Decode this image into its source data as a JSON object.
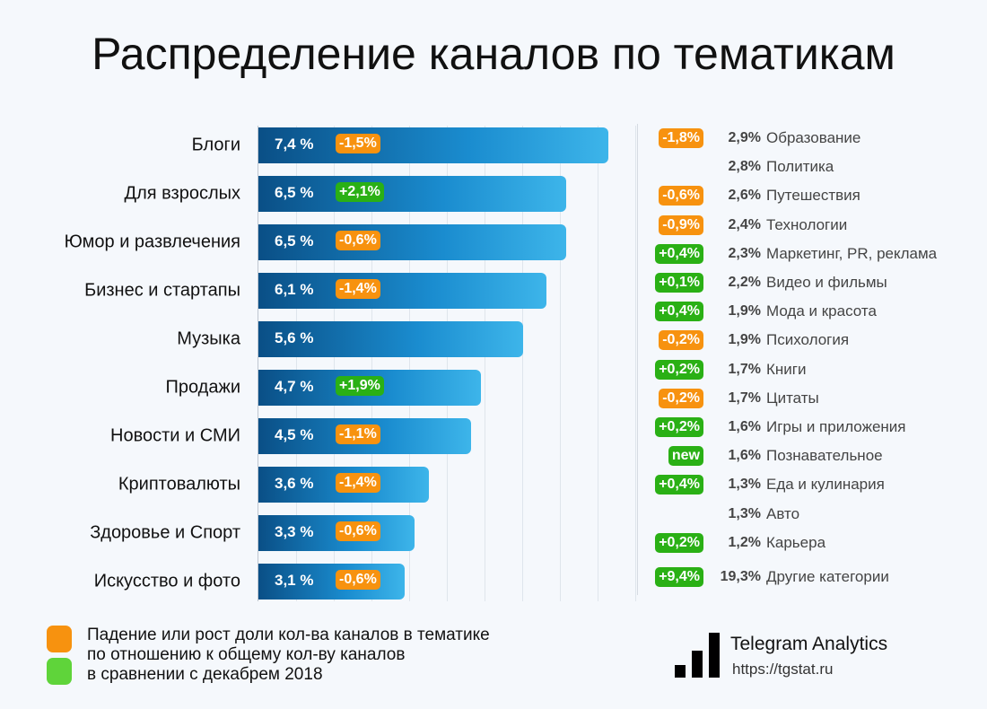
{
  "chart_data": {
    "type": "bar",
    "orientation": "horizontal",
    "title": "Распределение каналов по тематикам",
    "categories": [
      "Блоги",
      "Для взрослых",
      "Юмор и развлечения",
      "Бизнес и стартапы",
      "Музыка",
      "Продажи",
      "Новости и СМИ",
      "Криптовалюты",
      "Здоровье и Спорт",
      "Искусство и фото"
    ],
    "values": [
      7.4,
      6.5,
      6.5,
      6.1,
      5.6,
      4.7,
      4.5,
      3.6,
      3.3,
      3.1
    ],
    "value_labels": [
      "7,4 %",
      "6,5 %",
      "6,5 %",
      "6,1 %",
      "5,6 %",
      "4,7 %",
      "4,5 %",
      "3,6 %",
      "3,3 %",
      "3,1 %"
    ],
    "changes": [
      "-1,5%",
      "+2,1%",
      "-0,6%",
      "-1,4%",
      "",
      "+1,9%",
      "-1,1%",
      "-1,4%",
      "-0,6%",
      "-0,6%"
    ],
    "grid": true,
    "colors": {
      "bar_start": "#0a4f86",
      "bar_end": "#3db5ea",
      "decrease": "#f7920f",
      "increase": "#2ab015"
    },
    "other_categories": [
      {
        "change": "-1,8%",
        "value": "2,9%",
        "name": "Образование"
      },
      {
        "change": "",
        "value": "2,8%",
        "name": "Политика"
      },
      {
        "change": "-0,6%",
        "value": "2,6%",
        "name": "Путешествия"
      },
      {
        "change": "-0,9%",
        "value": "2,4%",
        "name": "Технологии"
      },
      {
        "change": "+0,4%",
        "value": "2,3%",
        "name": "Маркетинг, PR, реклама"
      },
      {
        "change": "+0,1%",
        "value": "2,2%",
        "name": "Видео и фильмы"
      },
      {
        "change": "+0,4%",
        "value": "1,9%",
        "name": "Мода и красота"
      },
      {
        "change": "-0,2%",
        "value": "1,9%",
        "name": "Психология"
      },
      {
        "change": "+0,2%",
        "value": "1,7%",
        "name": "Книги"
      },
      {
        "change": "-0,2%",
        "value": "1,7%",
        "name": "Цитаты"
      },
      {
        "change": "+0,2%",
        "value": "1,6%",
        "name": "Игры и приложения"
      },
      {
        "change": "new",
        "value": "1,6%",
        "name": "Познавательное"
      },
      {
        "change": "+0,4%",
        "value": "1,3%",
        "name": "Еда и кулинария"
      },
      {
        "change": "",
        "value": "1,3%",
        "name": "Авто"
      },
      {
        "change": "+0,2%",
        "value": "1,2%",
        "name": "Карьера"
      },
      {
        "change": "+9,4%",
        "value": "19,3%",
        "name": "Другие категории"
      }
    ],
    "legend": {
      "text": "Падение или рост доли кол-ва каналов в тематике\nпо отношению к общему кол-ву каналов\nв сравнении с декабрем 2018",
      "position": "bottom-left"
    }
  },
  "brand": {
    "name": "Telegram Analytics",
    "url": "https://tgstat.ru"
  }
}
